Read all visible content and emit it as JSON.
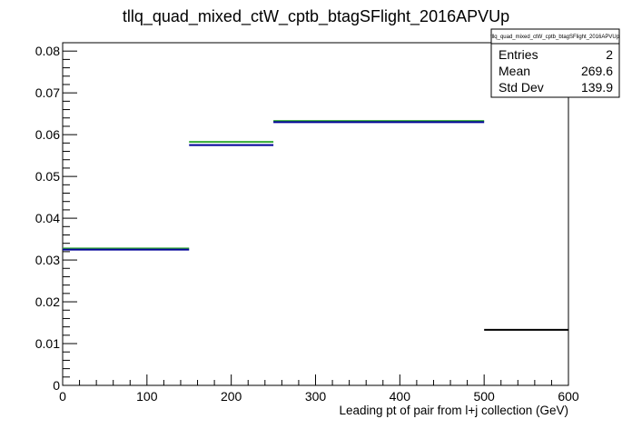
{
  "chart_data": {
    "type": "histogram",
    "title": "tllq_quad_mixed_ctW_cptb_btagSFlight_2016APVUp",
    "xlabel": "Leading pt of pair from l+j collection (GeV)",
    "ylabel": "",
    "xlim": [
      0,
      600
    ],
    "ylim": [
      0,
      0.082
    ],
    "x_ticks": [
      "0",
      "100",
      "200",
      "300",
      "400",
      "500",
      "600"
    ],
    "y_ticks": [
      "0",
      "0.01",
      "0.02",
      "0.03",
      "0.04",
      "0.05",
      "0.06",
      "0.07",
      "0.08"
    ],
    "x_tick_values": [
      0,
      100,
      200,
      300,
      400,
      500,
      600
    ],
    "y_tick_values": [
      0,
      0.01,
      0.02,
      0.03,
      0.04,
      0.05,
      0.06,
      0.07,
      0.08
    ],
    "bin_edges": [
      0,
      150,
      250,
      500,
      600
    ],
    "series": [
      {
        "values": [
          0.0325,
          0.058,
          0.063,
          0.0133
        ],
        "color": "#33aa33"
      },
      {
        "values": [
          0.0325,
          0.0575,
          0.063,
          0.0133
        ],
        "color": "#000099"
      }
    ],
    "overflow_bin_color": "#000000",
    "stats_box": {
      "title": "tllq_quad_mixed_ctW_cptb_btagSFlight_2016APVUp",
      "rows": [
        {
          "label": "Entries",
          "value": "2"
        },
        {
          "label": "Mean",
          "value": "269.6"
        },
        {
          "label": "Std Dev",
          "value": "139.9"
        }
      ]
    },
    "grid": false,
    "legend": "none"
  }
}
